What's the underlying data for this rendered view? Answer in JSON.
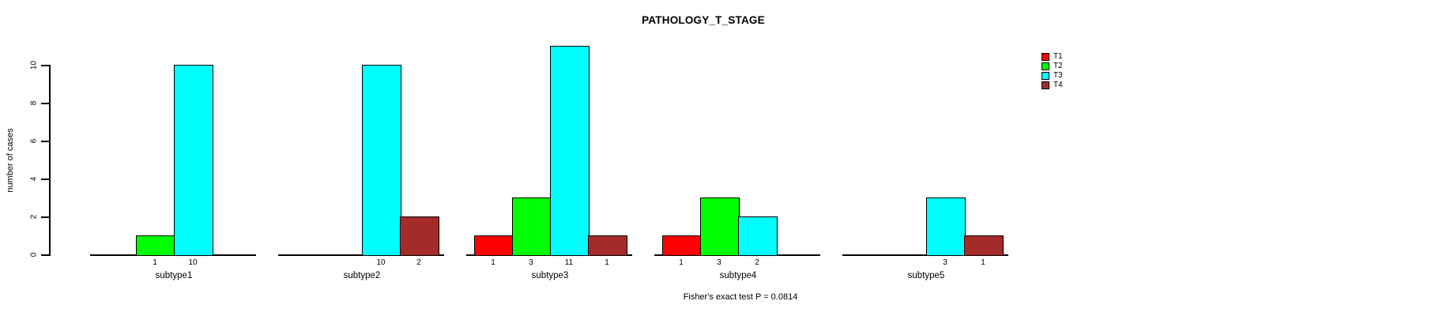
{
  "chart_data": {
    "type": "bar",
    "title": "PATHOLOGY_T_STAGE",
    "xlabel": "",
    "ylabel": "number of cases",
    "annotation": "Fisher's exact test P = 0.0814",
    "categories": [
      "subtype1",
      "subtype2",
      "subtype3",
      "subtype4",
      "subtype5"
    ],
    "series": [
      {
        "name": "T1",
        "color": "#ff0000",
        "values": [
          0,
          0,
          1,
          1,
          0
        ]
      },
      {
        "name": "T2",
        "color": "#00ff00",
        "values": [
          1,
          0,
          3,
          3,
          0
        ]
      },
      {
        "name": "T3",
        "color": "#00ffff",
        "values": [
          10,
          10,
          11,
          2,
          3
        ]
      },
      {
        "name": "T4",
        "color": "#a52a2a",
        "values": [
          0,
          2,
          1,
          0,
          1
        ]
      }
    ],
    "bar_value_labels_shown": true,
    "yticks": [
      0,
      2,
      4,
      6,
      8,
      10
    ],
    "ylim": [
      0,
      11
    ],
    "grid": false,
    "legend_position": "right",
    "legend_entries": [
      "T1",
      "T2",
      "T3",
      "T4"
    ]
  }
}
